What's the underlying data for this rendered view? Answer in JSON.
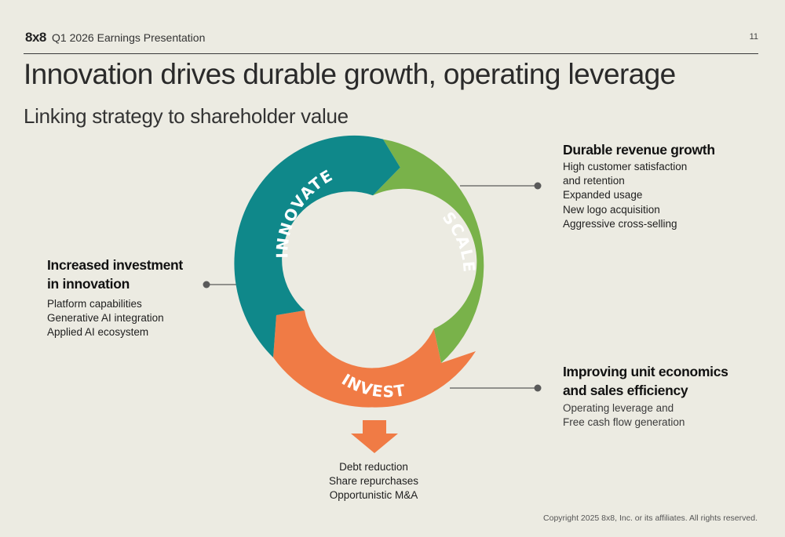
{
  "header": {
    "logo": "8x8",
    "deck_title": "Q1 2026 Earnings Presentation",
    "page_number": "11"
  },
  "title": "Innovation drives durable growth, operating leverage",
  "subtitle": "Linking strategy to shareholder value",
  "cycle": {
    "innovate": "INNOVATE",
    "scale": "SCALE",
    "invest": "INVEST",
    "colors": {
      "innovate": "#0f888a",
      "scale": "#79b24a",
      "invest": "#f07b45"
    }
  },
  "left_block": {
    "heading_lines": [
      "Increased investment",
      "in innovation"
    ],
    "items": [
      "Platform capabilities",
      "Generative AI integration",
      "Applied AI ecosystem"
    ]
  },
  "top_right_block": {
    "heading": "Durable revenue growth",
    "items": [
      "High customer satisfaction",
      "and retention",
      "Expanded usage",
      "New logo acquisition",
      "Aggressive cross-selling"
    ]
  },
  "bottom_right_block": {
    "heading_lines": [
      "Improving unit economics",
      "and sales efficiency"
    ],
    "items": [
      "Operating leverage and",
      "Free cash flow generation"
    ]
  },
  "bottom_block": {
    "items": [
      "Debt reduction",
      "Share repurchases",
      "Opportunistic M&A"
    ]
  },
  "footer": {
    "copyright": "Copyright 2025 8x8, Inc. or its affiliates. All rights reserved."
  }
}
